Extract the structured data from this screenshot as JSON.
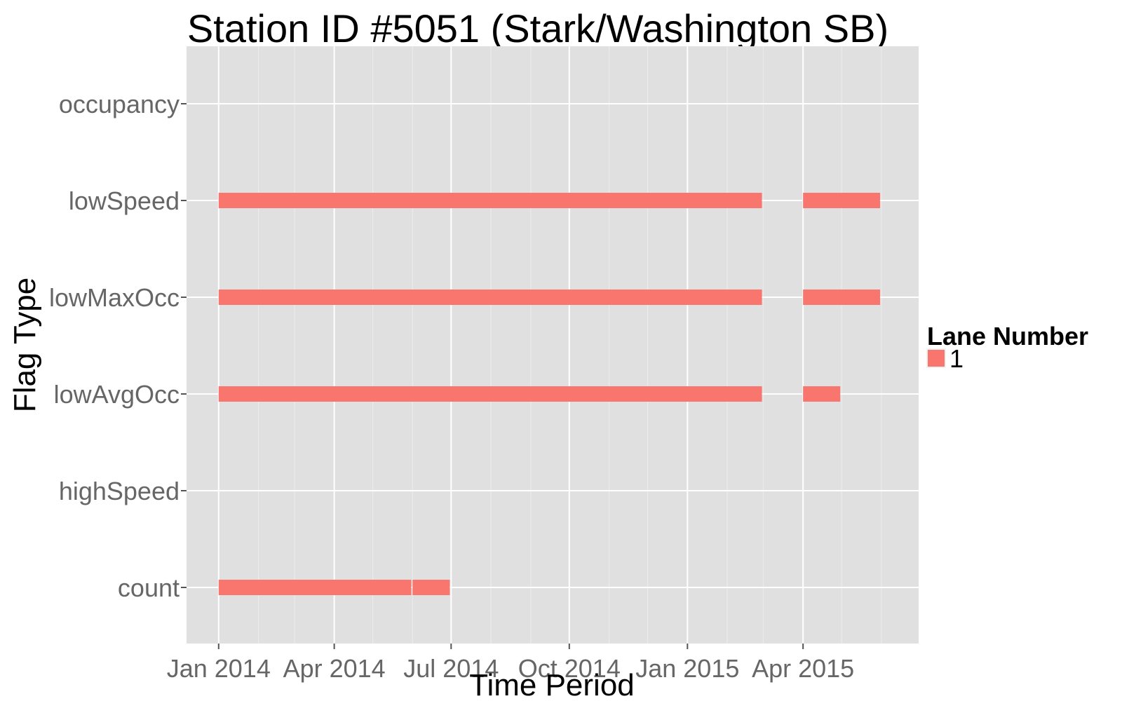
{
  "chart_data": {
    "type": "bar",
    "title": "Station ID #5051 (Stark/Washington SB)",
    "xlabel": "Time Period",
    "ylabel": "Flag Type",
    "x_ticks": [
      {
        "label": "Jan 2014",
        "date": "2014-01-01"
      },
      {
        "label": "Apr 2014",
        "date": "2014-04-01"
      },
      {
        "label": "Jul 2014",
        "date": "2014-07-01"
      },
      {
        "label": "Oct 2014",
        "date": "2014-10-01"
      },
      {
        "label": "Jan 2015",
        "date": "2015-01-01"
      },
      {
        "label": "Apr 2015",
        "date": "2015-04-01"
      }
    ],
    "xlim": [
      "2013-12-07",
      "2015-06-30"
    ],
    "categories": [
      "occupancy",
      "lowSpeed",
      "lowMaxOcc",
      "lowAvgOcc",
      "highSpeed",
      "count"
    ],
    "grid": true,
    "legend": {
      "title": "Lane Number",
      "placement": "right",
      "entries": [
        {
          "label": "1",
          "color": "#F8766D"
        }
      ]
    },
    "series": [
      {
        "lane": "1",
        "color": "#F8766D",
        "segments": [
          {
            "category": "lowSpeed",
            "start": "2014-01-01",
            "end": "2015-02-28"
          },
          {
            "category": "lowSpeed",
            "start": "2015-04-01",
            "end": "2015-05-31"
          },
          {
            "category": "lowMaxOcc",
            "start": "2014-01-01",
            "end": "2015-02-28"
          },
          {
            "category": "lowMaxOcc",
            "start": "2015-04-01",
            "end": "2015-05-31"
          },
          {
            "category": "lowAvgOcc",
            "start": "2014-01-01",
            "end": "2015-02-28"
          },
          {
            "category": "lowAvgOcc",
            "start": "2015-04-01",
            "end": "2015-04-30"
          },
          {
            "category": "count",
            "start": "2014-01-01",
            "end": "2014-05-31"
          },
          {
            "category": "count",
            "start": "2014-06-01",
            "end": "2014-06-30"
          }
        ]
      }
    ]
  }
}
